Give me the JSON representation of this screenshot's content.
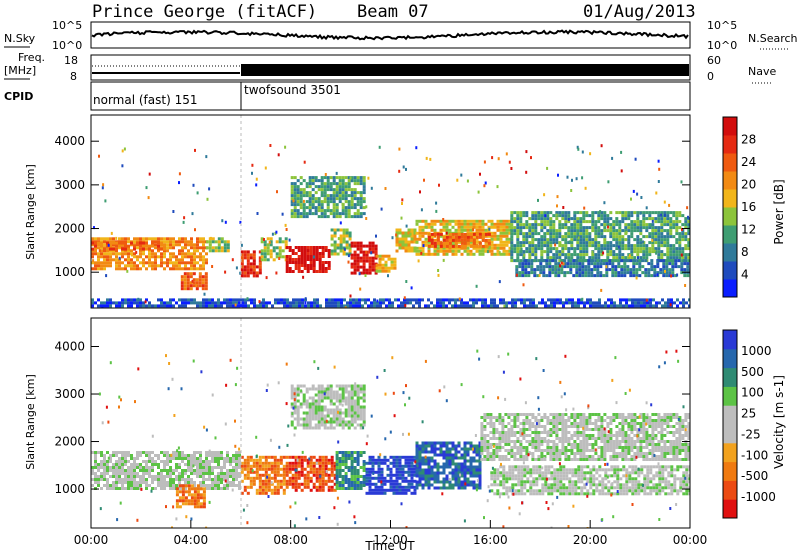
{
  "header": {
    "radar": "Prince George (fitACF)",
    "beam": "Beam 07",
    "date": "01/Aug/2013"
  },
  "strip_labels": {
    "nsky": "N.Sky",
    "nsky_hi": "10^5",
    "nsky_lo": "10^0",
    "nsearch": "N.Search",
    "nsearch_hi": "10^5",
    "nsearch_lo": "10^0",
    "freq_top": "Freq.",
    "freq_unit": "[MHz]",
    "freq_hi": "18",
    "freq_lo": "8",
    "nave": "Nave",
    "nave_hi": "60",
    "nave_lo": "0",
    "cpid": "CPID",
    "mode1": "normal (fast) 151",
    "mode2": "twofsound 3501"
  },
  "colors": {
    "power": [
      "#0a1eff",
      "#1f4bbd",
      "#2f7a9a",
      "#3e9d72",
      "#8cc43b",
      "#f1b51a",
      "#f28a13",
      "#ef5a10",
      "#e52a12",
      "#d20d0d"
    ],
    "velocity": [
      "#2a3ad6",
      "#2667ad",
      "#2f8b73",
      "#5cc345",
      "#bdbdbd",
      "#bdbdbd",
      "#f2a21e",
      "#f07a10",
      "#ec4a12",
      "#e01010"
    ]
  },
  "chart_data": [
    {
      "type": "heatmap",
      "panel": "power",
      "ylabel": "Slant Range [km]",
      "xlim": [
        0,
        24
      ],
      "ylim": [
        180,
        4600
      ],
      "yticks": [
        "1000",
        "2000",
        "3000",
        "4000"
      ],
      "colorbar": {
        "label": "Power [dB]",
        "ticks": [
          "4",
          "8",
          "12",
          "16",
          "20",
          "24",
          "28"
        ]
      },
      "bands": [
        {
          "t": [
            0.0,
            4.6
          ],
          "r": [
            1100,
            1800
          ],
          "level": 6
        },
        {
          "t": [
            0.0,
            3.0
          ],
          "r": [
            1500,
            1700
          ],
          "level": 7
        },
        {
          "t": [
            3.6,
            4.6
          ],
          "r": [
            600,
            1000
          ],
          "level": 7
        },
        {
          "t": [
            4.6,
            5.5
          ],
          "r": [
            1500,
            1800
          ],
          "level": 4
        },
        {
          "t": [
            6.0,
            6.8
          ],
          "r": [
            900,
            1500
          ],
          "level": 8
        },
        {
          "t": [
            6.8,
            7.8
          ],
          "r": [
            1300,
            1800
          ],
          "level": 4
        },
        {
          "t": [
            7.8,
            9.6
          ],
          "r": [
            1000,
            1600
          ],
          "level": 9
        },
        {
          "t": [
            9.6,
            10.4
          ],
          "r": [
            1400,
            2000
          ],
          "level": 4
        },
        {
          "t": [
            10.4,
            11.4
          ],
          "r": [
            950,
            1700
          ],
          "level": 9
        },
        {
          "t": [
            11.4,
            12.2
          ],
          "r": [
            1000,
            1400
          ],
          "level": 5
        },
        {
          "t": [
            12.2,
            13.0
          ],
          "r": [
            1500,
            2000
          ],
          "level": 5
        },
        {
          "t": [
            13.0,
            16.8
          ],
          "r": [
            1400,
            2200
          ],
          "level": 5
        },
        {
          "t": [
            13.5,
            16.0
          ],
          "r": [
            1600,
            1900
          ],
          "level": 7
        },
        {
          "t": [
            16.8,
            24.0
          ],
          "r": [
            1300,
            2400
          ],
          "level": 3
        },
        {
          "t": [
            17.0,
            24.0
          ],
          "r": [
            900,
            1300
          ],
          "level": 2
        },
        {
          "t": [
            8.0,
            11.0
          ],
          "r": [
            2300,
            3200
          ],
          "level": 3
        },
        {
          "t": [
            0.0,
            24.0
          ],
          "r": [
            200,
            400
          ],
          "level": 1
        }
      ]
    },
    {
      "type": "heatmap",
      "panel": "velocity",
      "ylabel": "Slant Range [km]",
      "xlabel": "Time UT",
      "xlim": [
        0,
        24
      ],
      "ylim": [
        180,
        4600
      ],
      "xticks": [
        "00:00",
        "04:00",
        "08:00",
        "12:00",
        "16:00",
        "20:00",
        "00:00"
      ],
      "yticks": [
        "1000",
        "2000",
        "3000",
        "4000"
      ],
      "colorbar": {
        "label": "Velocity [m s-1]",
        "ticks": [
          "1000",
          "500",
          "100",
          "25",
          "-25",
          "-100",
          "-500",
          "-1000"
        ]
      },
      "bands": [
        {
          "t": [
            0.0,
            6.0
          ],
          "r": [
            1000,
            1800
          ],
          "level": 4
        },
        {
          "t": [
            3.4,
            4.6
          ],
          "r": [
            600,
            1100
          ],
          "level": 7
        },
        {
          "t": [
            6.0,
            7.8
          ],
          "r": [
            900,
            1700
          ],
          "level": 7
        },
        {
          "t": [
            7.8,
            9.8
          ],
          "r": [
            1000,
            1700
          ],
          "level": 8
        },
        {
          "t": [
            9.8,
            11.0
          ],
          "r": [
            1000,
            1800
          ],
          "level": 2
        },
        {
          "t": [
            11.0,
            13.0
          ],
          "r": [
            900,
            1700
          ],
          "level": 0
        },
        {
          "t": [
            13.0,
            15.6
          ],
          "r": [
            1000,
            2000
          ],
          "level": 1
        },
        {
          "t": [
            15.6,
            24.0
          ],
          "r": [
            1600,
            2600
          ],
          "level": 4
        },
        {
          "t": [
            16.0,
            24.0
          ],
          "r": [
            900,
            1500
          ],
          "level": 4
        },
        {
          "t": [
            8.0,
            11.0
          ],
          "r": [
            2300,
            3200
          ],
          "level": 4
        }
      ]
    }
  ]
}
